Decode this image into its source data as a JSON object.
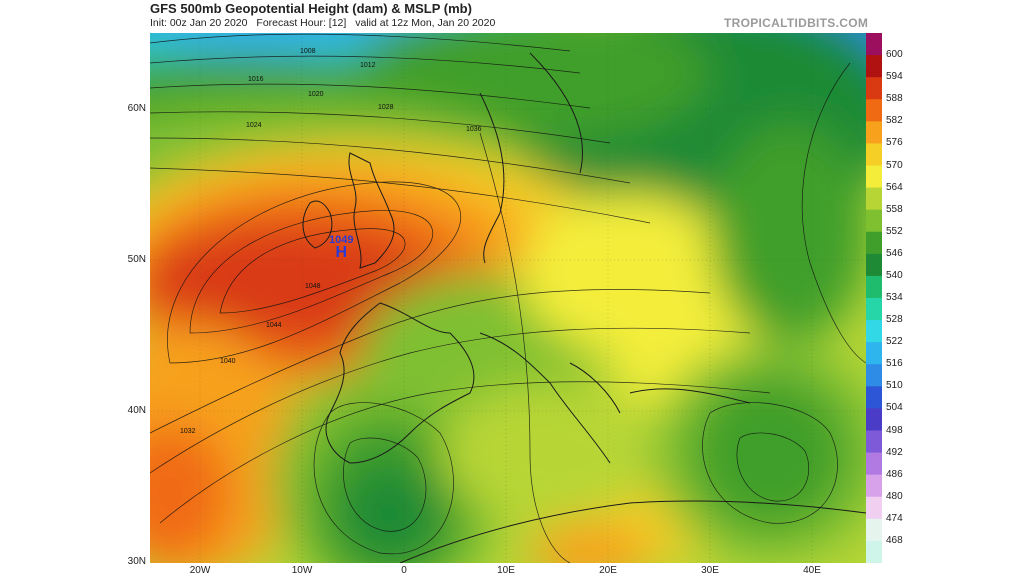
{
  "header": {
    "title": "GFS 500mb Geopotential Height (dam) & MSLP (mb)",
    "init": "Init: 00z Jan 20 2020",
    "forecast_hour": "Forecast Hour: [12]",
    "valid": "valid at 12z Mon, Jan 20 2020",
    "brand": "TROPICALTIDBITS.COM"
  },
  "map": {
    "lat_labels": [
      "60N",
      "50N",
      "40N",
      "30N"
    ],
    "lon_labels": [
      "20W",
      "10W",
      "0",
      "10E",
      "20E",
      "30E",
      "40E"
    ],
    "pressure_center": {
      "symbol": "H",
      "value": "1049"
    },
    "isobar_labels": [
      "1008",
      "1012",
      "1016",
      "1020",
      "1024",
      "1028",
      "1032",
      "1036",
      "1040",
      "1044",
      "1048"
    ]
  },
  "colorbar": {
    "labels": [
      "600",
      "594",
      "588",
      "582",
      "576",
      "570",
      "564",
      "558",
      "552",
      "546",
      "540",
      "534",
      "528",
      "522",
      "516",
      "510",
      "504",
      "498",
      "492",
      "486",
      "480",
      "474",
      "468"
    ],
    "colors": [
      "#9b0f5e",
      "#b01212",
      "#d93a12",
      "#f06a14",
      "#f7a11d",
      "#f6cf26",
      "#f4ee3a",
      "#b7d636",
      "#7fc030",
      "#3f9f2a",
      "#1e8a36",
      "#1fbc6e",
      "#26d6a8",
      "#33d8e6",
      "#2eb5ee",
      "#2f8ce6",
      "#2c56d6",
      "#4b3cc8",
      "#7f5ad8",
      "#b07ae2",
      "#d8a2ea",
      "#f0cff0",
      "#e6f4ee",
      "#cff4ea"
    ]
  }
}
